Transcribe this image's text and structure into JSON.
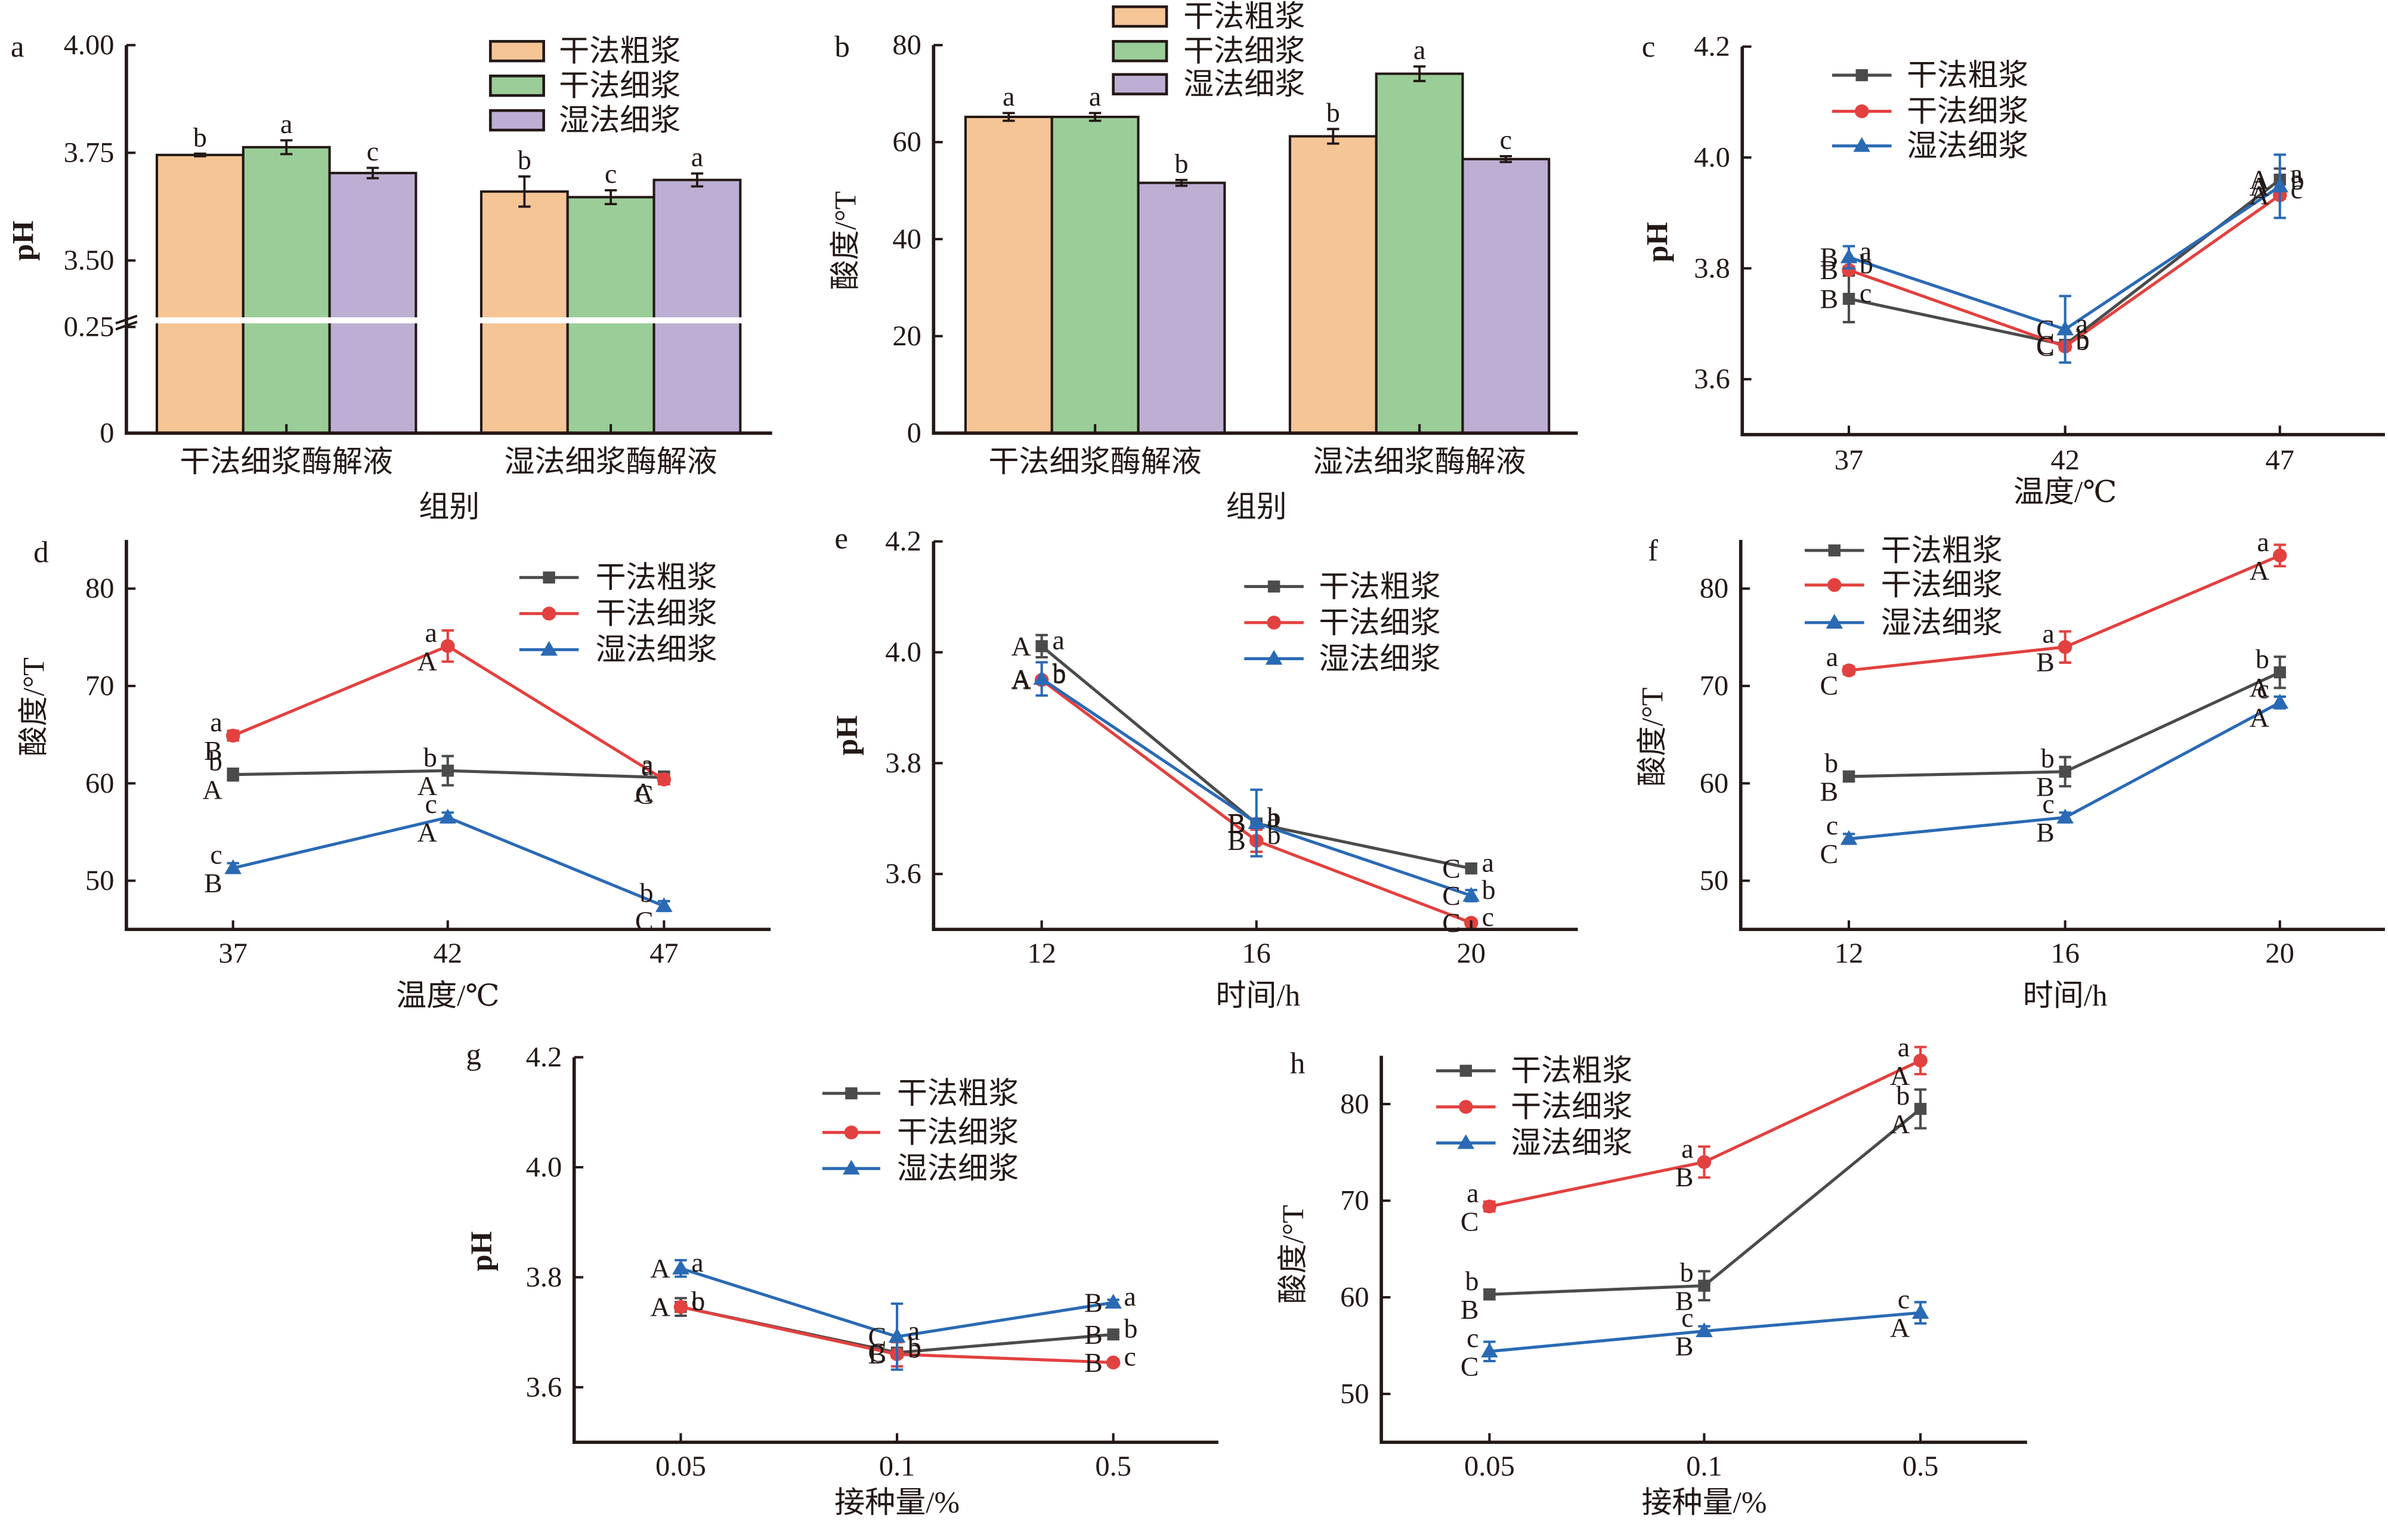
{
  "figure": {
    "series_names": [
      "干法粗浆",
      "干法细浆",
      "湿法细浆"
    ],
    "bar_colors": {
      "干法粗浆": "#f5c596",
      "干法细浆": "#9acd98",
      "湿法细浆": "#bdafd3"
    },
    "line_colors": {
      "干法粗浆": "#4b4b4b",
      "干法细浆": "#e2413f",
      "湿法细浆": "#2a6ab4"
    }
  },
  "chart_data": [
    {
      "panel_label": "a",
      "type": "bar",
      "title": "",
      "xlabel": "组别",
      "ylabel": "pH",
      "categories": [
        "干法细浆酶解液",
        "湿法细浆酶解液"
      ],
      "ylim": [
        0,
        4.0
      ],
      "y_axis_break": [
        0.25,
        3.5
      ],
      "y_ticks": [
        0,
        0.25,
        3.5,
        3.75,
        4.0
      ],
      "y_tick_labels": [
        "0",
        "0.25",
        "3.50",
        "3.75",
        "4.00"
      ],
      "grid": false,
      "legend_position": "top-right",
      "series": [
        {
          "name": "干法粗浆",
          "color": "#f5c596",
          "values": [
            3.745,
            3.66
          ],
          "errors": [
            0.003,
            0.035
          ],
          "sig_letters": [
            "b",
            "b"
          ]
        },
        {
          "name": "干法细浆",
          "color": "#9acd98",
          "values": [
            3.763,
            3.647
          ],
          "errors": [
            0.016,
            0.016
          ],
          "sig_letters": [
            "a",
            "c"
          ]
        },
        {
          "name": "湿法细浆",
          "color": "#bdafd3",
          "values": [
            3.703,
            3.687
          ],
          "errors": [
            0.012,
            0.015
          ],
          "sig_letters": [
            "c",
            "a"
          ]
        }
      ]
    },
    {
      "panel_label": "b",
      "type": "bar",
      "title": "",
      "xlabel": "组别",
      "ylabel": "酸度/°T",
      "categories": [
        "干法细浆酶解液",
        "湿法细浆酶解液"
      ],
      "ylim": [
        0,
        80
      ],
      "y_ticks": [
        0,
        20,
        40,
        60,
        80
      ],
      "y_tick_labels": [
        "0",
        "20",
        "40",
        "60",
        "80"
      ],
      "grid": false,
      "legend_position": "top-center",
      "series": [
        {
          "name": "干法粗浆",
          "color": "#f5c596",
          "values": [
            65.2,
            61.2
          ],
          "errors": [
            0.8,
            1.5
          ],
          "sig_letters": [
            "a",
            "b"
          ]
        },
        {
          "name": "干法细浆",
          "color": "#9acd98",
          "values": [
            65.2,
            74.1
          ],
          "errors": [
            0.8,
            1.5
          ],
          "sig_letters": [
            "a",
            "a"
          ]
        },
        {
          "name": "湿法细浆",
          "color": "#bdafd3",
          "values": [
            51.6,
            56.5
          ],
          "errors": [
            0.6,
            0.6
          ],
          "sig_letters": [
            "b",
            "c"
          ]
        }
      ]
    },
    {
      "panel_label": "c",
      "type": "line",
      "title": "",
      "xlabel": "温度/℃",
      "ylabel": "pH",
      "x": [
        "37",
        "42",
        "47"
      ],
      "ylim": [
        3.5,
        4.2
      ],
      "y_ticks": [
        3.6,
        3.8,
        4.0,
        4.2
      ],
      "y_tick_labels": [
        "3.6",
        "3.8",
        "4.0",
        "4.2"
      ],
      "grid": false,
      "legend_position": "top-left",
      "series": [
        {
          "name": "干法粗浆",
          "color": "#4b4b4b",
          "marker": "square",
          "values": [
            3.745,
            3.662,
            3.96
          ],
          "errors": [
            0.042,
            0.005,
            0.02
          ],
          "sig_lower": [
            "c",
            "b",
            "a"
          ],
          "sig_upper": [
            "B",
            "C",
            "A"
          ]
        },
        {
          "name": "干法细浆",
          "color": "#e2413f",
          "marker": "circle",
          "values": [
            3.797,
            3.659,
            3.932
          ],
          "errors": [
            0.006,
            0.005,
            0.006
          ],
          "sig_lower": [
            "b",
            "b",
            "c"
          ],
          "sig_upper": [
            "B",
            "C",
            "A"
          ]
        },
        {
          "name": "湿法细浆",
          "color": "#2a6ab4",
          "marker": "triangle",
          "values": [
            3.82,
            3.69,
            3.948
          ],
          "errors": [
            0.02,
            0.06,
            0.057
          ],
          "sig_lower": [
            "a",
            "a",
            "b"
          ],
          "sig_upper": [
            "B",
            "C",
            "A"
          ]
        }
      ]
    },
    {
      "panel_label": "d",
      "type": "line",
      "title": "",
      "xlabel": "温度/℃",
      "ylabel": "酸度/°T",
      "x": [
        "37",
        "42",
        "47"
      ],
      "ylim": [
        45,
        85
      ],
      "y_ticks": [
        50,
        60,
        70,
        80
      ],
      "y_tick_labels": [
        "50",
        "60",
        "70",
        "80"
      ],
      "grid": false,
      "legend_position": "top-right",
      "series": [
        {
          "name": "干法粗浆",
          "color": "#4b4b4b",
          "marker": "square",
          "values": [
            60.9,
            61.3,
            60.6
          ],
          "errors": [
            0.6,
            1.5,
            0.6
          ],
          "sig_lower": [
            "b",
            "b",
            "a"
          ],
          "sig_upper": [
            "A",
            "A",
            "A"
          ]
        },
        {
          "name": "干法细浆",
          "color": "#e2413f",
          "marker": "circle",
          "values": [
            64.9,
            74.1,
            60.4
          ],
          "errors": [
            0.5,
            1.6,
            0.5
          ],
          "sig_lower": [
            "a",
            "a",
            "a"
          ],
          "sig_upper": [
            "B",
            "A",
            "C"
          ]
        },
        {
          "name": "湿法细浆",
          "color": "#2a6ab4",
          "marker": "triangle",
          "values": [
            51.3,
            56.5,
            47.4
          ],
          "errors": [
            0.5,
            0.5,
            0.5
          ],
          "sig_lower": [
            "c",
            "c",
            "b"
          ],
          "sig_upper": [
            "B",
            "A",
            "C"
          ]
        }
      ]
    },
    {
      "panel_label": "e",
      "type": "line",
      "title": "",
      "xlabel": "时间/h",
      "ylabel": "pH",
      "x": [
        "12",
        "16",
        "20"
      ],
      "ylim": [
        3.5,
        4.2
      ],
      "y_ticks": [
        3.6,
        3.8,
        4.0,
        4.2
      ],
      "y_tick_labels": [
        "3.6",
        "3.8",
        "4.0",
        "4.2"
      ],
      "grid": false,
      "legend_position": "top-right",
      "series": [
        {
          "name": "干法粗浆",
          "color": "#4b4b4b",
          "marker": "square",
          "values": [
            4.011,
            3.691,
            3.61
          ],
          "errors": [
            0.02,
            0.005,
            0.005
          ],
          "sig_lower": [
            "a",
            "a",
            "a"
          ],
          "sig_upper": [
            "A",
            "B",
            "C"
          ]
        },
        {
          "name": "干法细浆",
          "color": "#e2413f",
          "marker": "circle",
          "values": [
            3.95,
            3.66,
            3.512
          ],
          "errors": [
            0.005,
            0.02,
            0.005
          ],
          "sig_lower": [
            "b",
            "b",
            "c"
          ],
          "sig_upper": [
            "A",
            "B",
            "C"
          ]
        },
        {
          "name": "湿法细浆",
          "color": "#2a6ab4",
          "marker": "triangle",
          "values": [
            3.952,
            3.692,
            3.561
          ],
          "errors": [
            0.03,
            0.06,
            0.01
          ],
          "sig_lower": [
            "b",
            "b",
            "b"
          ],
          "sig_upper": [
            "A",
            "B",
            "C"
          ]
        }
      ]
    },
    {
      "panel_label": "f",
      "type": "line",
      "title": "",
      "xlabel": "时间/h",
      "ylabel": "酸度/°T",
      "x": [
        "12",
        "16",
        "20"
      ],
      "ylim": [
        45,
        85
      ],
      "y_ticks": [
        50,
        60,
        70,
        80
      ],
      "y_tick_labels": [
        "50",
        "60",
        "70",
        "80"
      ],
      "grid": false,
      "legend_position": "top-left",
      "series": [
        {
          "name": "干法粗浆",
          "color": "#4b4b4b",
          "marker": "square",
          "values": [
            60.7,
            61.2,
            71.4
          ],
          "errors": [
            0.5,
            1.5,
            1.6
          ],
          "sig_lower": [
            "b",
            "b",
            "b"
          ],
          "sig_upper": [
            "B",
            "B",
            "A"
          ]
        },
        {
          "name": "干法细浆",
          "color": "#e2413f",
          "marker": "circle",
          "values": [
            71.6,
            74.0,
            83.4
          ],
          "errors": [
            0.4,
            1.6,
            1.1
          ],
          "sig_lower": [
            "a",
            "a",
            "a"
          ],
          "sig_upper": [
            "C",
            "B",
            "A"
          ]
        },
        {
          "name": "湿法细浆",
          "color": "#2a6ab4",
          "marker": "triangle",
          "values": [
            54.3,
            56.5,
            68.3
          ],
          "errors": [
            0.5,
            0.5,
            0.6
          ],
          "sig_lower": [
            "c",
            "c",
            "c"
          ],
          "sig_upper": [
            "C",
            "B",
            "A"
          ]
        }
      ]
    },
    {
      "panel_label": "g",
      "type": "line",
      "title": "",
      "xlabel": "接种量/%",
      "ylabel": "pH",
      "x": [
        "0.05",
        "0.1",
        "0.5"
      ],
      "ylim": [
        3.5,
        4.2
      ],
      "y_ticks": [
        3.6,
        3.8,
        4.0,
        4.2
      ],
      "y_tick_labels": [
        "3.6",
        "3.8",
        "4.0",
        "4.2"
      ],
      "grid": false,
      "legend_position": "top-right",
      "series": [
        {
          "name": "干法粗浆",
          "color": "#4b4b4b",
          "marker": "square",
          "values": [
            3.746,
            3.663,
            3.696
          ],
          "errors": [
            0.016,
            0.005,
            0.005
          ],
          "sig_lower": [
            "b",
            "b",
            "b"
          ],
          "sig_upper": [
            "A",
            "C",
            "B"
          ]
        },
        {
          "name": "干法细浆",
          "color": "#e2413f",
          "marker": "circle",
          "values": [
            3.746,
            3.66,
            3.645
          ],
          "errors": [
            0.005,
            0.022,
            0.005
          ],
          "sig_lower": [
            "c",
            "b",
            "c"
          ],
          "sig_upper": [
            "A",
            "B",
            "B"
          ]
        },
        {
          "name": "湿法细浆",
          "color": "#2a6ab4",
          "marker": "triangle",
          "values": [
            3.816,
            3.692,
            3.754
          ],
          "errors": [
            0.015,
            0.06,
            0.005
          ],
          "sig_lower": [
            "a",
            "a",
            "a"
          ],
          "sig_upper": [
            "A",
            "C",
            "B"
          ]
        }
      ]
    },
    {
      "panel_label": "h",
      "type": "line",
      "title": "",
      "xlabel": "接种量/%",
      "ylabel": "酸度/°T",
      "x": [
        "0.05",
        "0.1",
        "0.5"
      ],
      "ylim": [
        45,
        85
      ],
      "y_ticks": [
        50,
        60,
        70,
        80
      ],
      "y_tick_labels": [
        "50",
        "60",
        "70",
        "80"
      ],
      "grid": false,
      "legend_position": "top-left",
      "series": [
        {
          "name": "干法粗浆",
          "color": "#4b4b4b",
          "marker": "square",
          "values": [
            60.3,
            61.2,
            79.5
          ],
          "errors": [
            0.5,
            1.5,
            2.0
          ],
          "sig_lower": [
            "b",
            "b",
            "b"
          ],
          "sig_upper": [
            "B",
            "B",
            "A"
          ]
        },
        {
          "name": "干法细浆",
          "color": "#e2413f",
          "marker": "circle",
          "values": [
            69.4,
            74.0,
            84.5
          ],
          "errors": [
            0.5,
            1.6,
            1.4
          ],
          "sig_lower": [
            "a",
            "a",
            "a"
          ],
          "sig_upper": [
            "C",
            "B",
            "A"
          ]
        },
        {
          "name": "湿法细浆",
          "color": "#2a6ab4",
          "marker": "triangle",
          "values": [
            54.4,
            56.5,
            58.4
          ],
          "errors": [
            1.0,
            0.5,
            1.1
          ],
          "sig_lower": [
            "c",
            "c",
            "c"
          ],
          "sig_upper": [
            "C",
            "B",
            "A"
          ]
        }
      ]
    }
  ]
}
